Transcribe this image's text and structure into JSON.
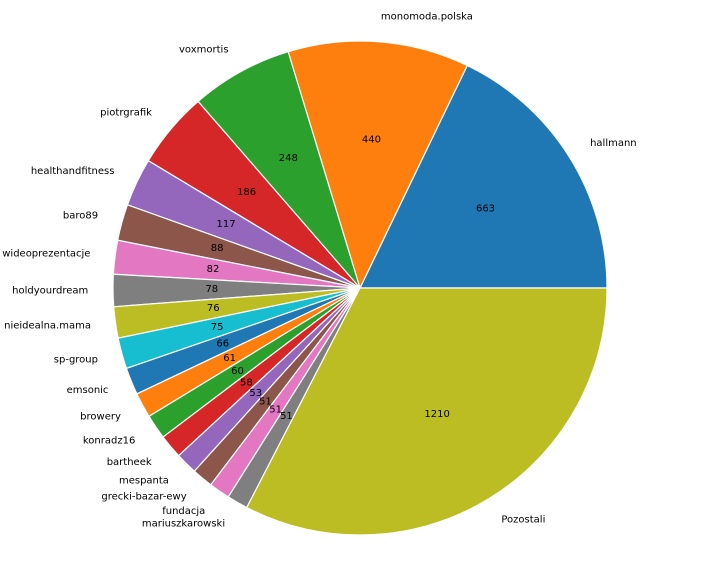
{
  "chart_data": {
    "type": "pie",
    "title": "",
    "categories": [
      "hallmann",
      "monomoda.polska",
      "voxmortis",
      "piotrgrafik",
      "healthandfitness",
      "baro89",
      "wideoprezentacje",
      "holdyourdream",
      "nieidealna.mama",
      "sp-group",
      "emsonic",
      "browery",
      "konradz16",
      "bartheek",
      "mespanta",
      "grecki-bazar-ewy",
      "fundacja",
      "mariuszkarowski",
      "Pozostali"
    ],
    "values": [
      663,
      440,
      248,
      186,
      117,
      88,
      82,
      78,
      76,
      75,
      66,
      61,
      60,
      58,
      53,
      51,
      51,
      51,
      1210
    ],
    "colors": [
      "#1f77b4",
      "#ff7f0e",
      "#2ca02c",
      "#d62728",
      "#9467bd",
      "#8c564b",
      "#e377c2",
      "#7f7f7f",
      "#bcbd22",
      "#17becf",
      "#1f77b4",
      "#ff7f0e",
      "#2ca02c",
      "#d62728",
      "#9467bd",
      "#8c564b",
      "#e377c2",
      "#7f7f7f",
      "#bcbd22"
    ],
    "start_angle_deg": 0,
    "direction": "counterclockwise",
    "legend": "none",
    "value_labels": "absolute"
  }
}
